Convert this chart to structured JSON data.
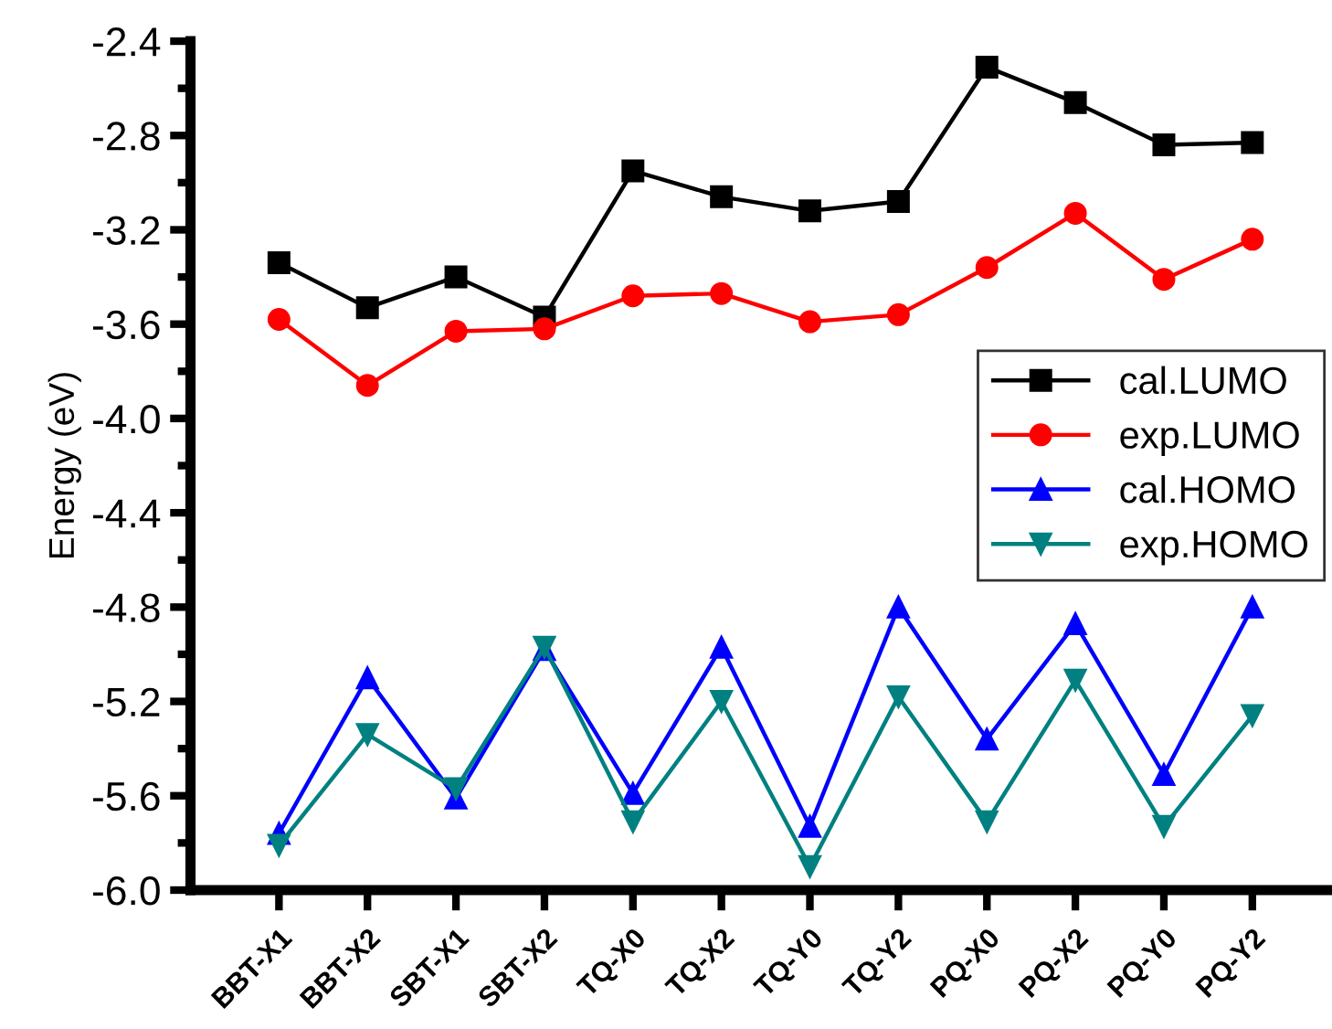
{
  "chart_data": {
    "type": "line",
    "ylabel": "Energy (eV)",
    "categories": [
      "BBT-X1",
      "BBT-X2",
      "SBT-X1",
      "SBT-X2",
      "TQ-X0",
      "TQ-X2",
      "TQ-Y0",
      "TQ-Y2",
      "PQ-X0",
      "PQ-X2",
      "PQ-Y0",
      "PQ-Y2"
    ],
    "series": [
      {
        "name": "cal.LUMO",
        "color": "#000000",
        "marker": "square",
        "values": [
          -3.34,
          -3.53,
          -3.4,
          -3.57,
          -2.95,
          -3.06,
          -3.12,
          -3.08,
          -2.51,
          -2.66,
          -2.84,
          -2.83
        ]
      },
      {
        "name": "exp.LUMO",
        "color": "#ff0000",
        "marker": "circle",
        "values": [
          -3.58,
          -3.86,
          -3.63,
          -3.62,
          -3.48,
          -3.47,
          -3.59,
          -3.56,
          -3.36,
          -3.13,
          -3.41,
          -3.24
        ]
      },
      {
        "name": "cal.HOMO",
        "color": "#0000ff",
        "marker": "triangle",
        "values": [
          -5.76,
          -5.1,
          -5.61,
          -4.98,
          -5.59,
          -4.97,
          -5.73,
          -4.8,
          -5.36,
          -4.87,
          -5.51,
          -4.8
        ]
      },
      {
        "name": "exp.HOMO",
        "color": "#008080",
        "marker": "triangle-down",
        "values": [
          -5.81,
          -5.34,
          -5.57,
          -4.97,
          -5.71,
          -5.2,
          -5.9,
          -5.18,
          -5.71,
          -5.11,
          -5.73,
          -5.26
        ]
      }
    ],
    "ylim": [
      -6.0,
      -2.4
    ],
    "yticks": [
      {
        "value": -6.0,
        "label": "-6.0"
      },
      {
        "value": -5.6,
        "label": "-5.6"
      },
      {
        "value": -5.2,
        "label": "-5.2"
      },
      {
        "value": -4.8,
        "label": "-4.8"
      },
      {
        "value": -4.4,
        "label": "-4.4"
      },
      {
        "value": -4.0,
        "label": "-4.0"
      },
      {
        "value": -3.6,
        "label": "-3.6"
      },
      {
        "value": -3.2,
        "label": "-3.2"
      },
      {
        "value": -2.8,
        "label": "-2.8"
      },
      {
        "value": -2.4,
        "label": "-2.4"
      }
    ],
    "legend": "center right",
    "grid": false,
    "line_style": "solid"
  }
}
